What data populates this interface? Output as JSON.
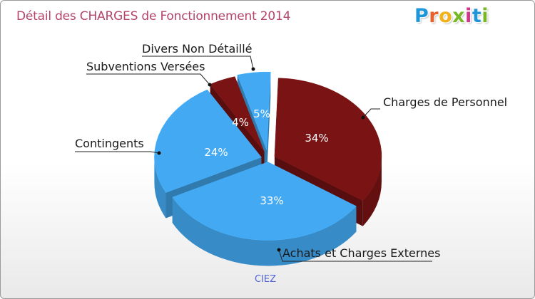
{
  "title": "Détail des CHARGES de Fonctionnement 2014",
  "logo": {
    "text": "Proxiti",
    "colors": [
      "#1f96d8",
      "#e8612c",
      "#f2b21b",
      "#7ab728",
      "#d5348b",
      "#1f96d8",
      "#7ab728"
    ]
  },
  "city": "CIEZ",
  "chart_data": {
    "type": "pie",
    "title": "Détail des CHARGES de Fonctionnement 2014",
    "slices": [
      {
        "label": "Charges de Personnel",
        "value": 34,
        "pct_label": "34%",
        "color": "#7a1414"
      },
      {
        "label": "Achats et Charges Externes",
        "value": 33,
        "pct_label": "33%",
        "color": "#43a9f2"
      },
      {
        "label": "Contingents",
        "value": 24,
        "pct_label": "24%",
        "color": "#43a9f2"
      },
      {
        "label": "Subventions Versées",
        "value": 4,
        "pct_label": "4%",
        "color": "#7a1414"
      },
      {
        "label": "Divers Non Détaillé",
        "value": 5,
        "pct_label": "5%",
        "color": "#43a9f2"
      }
    ]
  }
}
